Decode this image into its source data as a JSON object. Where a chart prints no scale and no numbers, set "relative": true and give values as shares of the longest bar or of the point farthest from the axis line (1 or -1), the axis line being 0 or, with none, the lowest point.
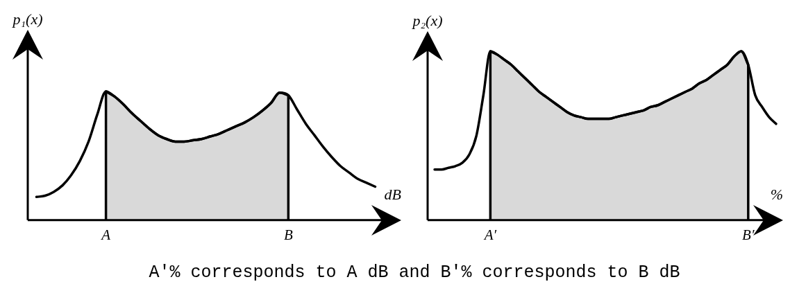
{
  "chart_data": [
    {
      "type": "line",
      "relative": true,
      "xlabel": "dB",
      "ylabel": "p₁(x)",
      "categories": [
        null,
        null,
        null,
        null,
        null,
        null,
        null,
        null,
        null,
        "A",
        null,
        null,
        null,
        null,
        null,
        null,
        null,
        null,
        null,
        null,
        null,
        null,
        null,
        null,
        null,
        null,
        null,
        null,
        null,
        null,
        "B",
        null,
        null,
        null,
        null,
        null,
        null,
        null,
        null,
        null,
        null,
        null,
        null,
        null
      ],
      "series": [
        {
          "type": "line",
          "color": "#000000",
          "values": [
            null,
            0.18,
            0.19,
            0.22,
            0.27,
            0.35,
            0.46,
            0.61,
            0.82,
            1,
            0.96,
            0.9,
            0.83,
            0.77,
            0.71,
            0.66,
            0.63,
            0.61,
            0.61,
            0.62,
            0.63,
            0.65,
            0.67,
            0.7,
            0.73,
            0.76,
            0.8,
            0.85,
            0.91,
            0.99,
            0.97,
            0.86,
            0.75,
            0.66,
            0.57,
            0.49,
            0.42,
            0.37,
            0.32,
            0.29,
            0.26,
            null,
            null,
            null
          ]
        },
        {
          "type": "area",
          "color": "#000000",
          "values": [
            null,
            null,
            null,
            null,
            null,
            null,
            null,
            null,
            null,
            1,
            0.96,
            0.9,
            0.83,
            0.77,
            0.71,
            0.66,
            0.63,
            0.61,
            0.61,
            0.62,
            0.63,
            0.65,
            0.67,
            0.7,
            0.73,
            0.76,
            0.8,
            0.85,
            0.91,
            0.99,
            0.97,
            null,
            null,
            null,
            null,
            null,
            null,
            null,
            null,
            null,
            null,
            null,
            null,
            null
          ]
        }
      ],
      "annotations": [
        "A′% corresponds to A dB and B′% corresponds to B dB"
      ]
    },
    {
      "type": "line",
      "relative": true,
      "xlabel": "%",
      "ylabel": "p₂(x)",
      "categories": [
        null,
        null,
        null,
        null,
        null,
        null,
        null,
        null,
        null,
        "A′",
        null,
        null,
        null,
        null,
        null,
        null,
        null,
        null,
        null,
        null,
        null,
        null,
        null,
        null,
        null,
        null,
        null,
        null,
        null,
        null,
        null,
        null,
        null,
        null,
        null,
        null,
        null,
        null,
        null,
        null,
        null,
        null,
        null,
        null,
        null,
        null,
        "B′",
        null,
        null,
        null,
        null,
        null
      ],
      "series": [
        {
          "type": "line",
          "color": "#000000",
          "values": [
            null,
            0.3,
            0.3,
            0.31,
            0.32,
            0.34,
            0.39,
            0.5,
            0.74,
            1,
            0.98,
            0.95,
            0.92,
            0.88,
            0.84,
            0.8,
            0.76,
            0.73,
            0.7,
            0.67,
            0.64,
            0.62,
            0.61,
            0.6,
            0.6,
            0.6,
            0.6,
            0.61,
            0.62,
            0.63,
            0.64,
            0.65,
            0.67,
            0.68,
            0.7,
            0.72,
            0.74,
            0.76,
            0.78,
            0.81,
            0.83,
            0.86,
            0.89,
            0.92,
            0.97,
            1,
            0.92,
            0.74,
            0.67,
            0.61,
            0.57,
            null
          ]
        },
        {
          "type": "area",
          "color": "#000000",
          "values": [
            null,
            null,
            null,
            null,
            null,
            null,
            null,
            null,
            null,
            1,
            0.98,
            0.95,
            0.92,
            0.88,
            0.84,
            0.8,
            0.76,
            0.73,
            0.7,
            0.67,
            0.64,
            0.62,
            0.61,
            0.6,
            0.6,
            0.6,
            0.6,
            0.61,
            0.62,
            0.63,
            0.64,
            0.65,
            0.67,
            0.68,
            0.7,
            0.72,
            0.74,
            0.76,
            0.78,
            0.81,
            0.83,
            0.86,
            0.89,
            0.92,
            0.97,
            1,
            0.92,
            null,
            null,
            null,
            null,
            null
          ]
        }
      ]
    }
  ]
}
